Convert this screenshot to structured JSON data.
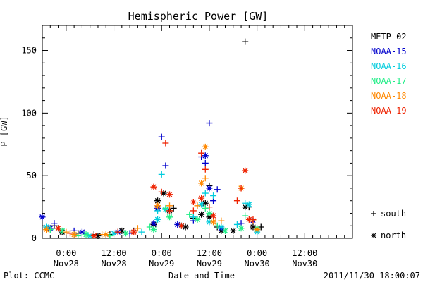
{
  "chart_data": {
    "type": "scatter",
    "title": "Hemispheric Power [GW]",
    "xlabel": "Date and Time",
    "ylabel": "P [GW]",
    "xlim": [
      "2011-11-27 18:00",
      "2011-12-01 00:00"
    ],
    "ylim": [
      0,
      170
    ],
    "x_ticks": [
      {
        "time": "2011-11-28 00:00",
        "line1": "0:00",
        "line2": "Nov28"
      },
      {
        "time": "2011-11-28 12:00",
        "line1": "12:00",
        "line2": "Nov28"
      },
      {
        "time": "2011-11-29 00:00",
        "line1": "0:00",
        "line2": "Nov29"
      },
      {
        "time": "2011-11-29 12:00",
        "line1": "12:00",
        "line2": "Nov29"
      },
      {
        "time": "2011-11-30 00:00",
        "line1": "0:00",
        "line2": "Nov30"
      },
      {
        "time": "2011-11-30 12:00",
        "line1": "12:00",
        "line2": "Nov30"
      }
    ],
    "y_ticks": [
      0,
      50,
      100,
      150
    ],
    "grid": false,
    "legend_position": "right",
    "series": [
      {
        "name": "METP-02",
        "color": "#000000",
        "south": [
          [
            "2011-11-27 21:00",
            10
          ],
          [
            "2011-11-28 03:00",
            4
          ],
          [
            "2011-11-28 07:00",
            3
          ],
          [
            "2011-11-28 11:00",
            3
          ],
          [
            "2011-11-28 17:00",
            6
          ],
          [
            "2011-11-29 03:00",
            24
          ],
          [
            "2011-11-29 08:00",
            16
          ],
          [
            "2011-11-29 12:00",
            42
          ],
          [
            "2011-11-29 14:00",
            9
          ],
          [
            "2011-11-29 21:00",
            157
          ],
          [
            "2011-11-29 22:00",
            25
          ],
          [
            "2011-11-30 01:00",
            9
          ]
        ],
        "north": [
          [
            "2011-11-27 23:00",
            5
          ],
          [
            "2011-11-28 08:00",
            2
          ],
          [
            "2011-11-28 14:00",
            6
          ],
          [
            "2011-11-28 22:00",
            11
          ],
          [
            "2011-11-28 23:00",
            30
          ],
          [
            "2011-11-29 00:30",
            36
          ],
          [
            "2011-11-29 02:00",
            22
          ],
          [
            "2011-11-29 06:00",
            9
          ],
          [
            "2011-11-29 10:00",
            19
          ],
          [
            "2011-11-29 11:00",
            28
          ],
          [
            "2011-11-29 12:00",
            17
          ],
          [
            "2011-11-29 15:00",
            6
          ],
          [
            "2011-11-29 18:00",
            6
          ],
          [
            "2011-11-29 21:00",
            25
          ],
          [
            "2011-11-29 23:00",
            9
          ]
        ]
      },
      {
        "name": "NOAA-15",
        "color": "#0000cc",
        "south": [
          [
            "2011-11-27 21:00",
            12
          ],
          [
            "2011-11-28 02:00",
            6
          ],
          [
            "2011-11-28 16:00",
            4
          ],
          [
            "2011-11-29 00:00",
            81
          ],
          [
            "2011-11-29 01:00",
            58
          ],
          [
            "2011-11-29 08:00",
            14
          ],
          [
            "2011-11-29 10:00",
            65
          ],
          [
            "2011-11-29 11:00",
            60
          ],
          [
            "2011-11-29 12:00",
            92
          ],
          [
            "2011-11-29 13:00",
            30
          ],
          [
            "2011-11-29 14:00",
            39
          ],
          [
            "2011-11-29 20:00",
            12
          ]
        ],
        "north": [
          [
            "2011-11-27 18:00",
            17
          ],
          [
            "2011-11-27 20:00",
            8
          ],
          [
            "2011-11-28 04:00",
            5
          ],
          [
            "2011-11-28 13:00",
            5
          ],
          [
            "2011-11-28 22:00",
            12
          ],
          [
            "2011-11-28 23:00",
            24
          ],
          [
            "2011-11-29 04:00",
            11
          ],
          [
            "2011-11-29 11:00",
            66
          ],
          [
            "2011-11-29 12:00",
            40
          ],
          [
            "2011-11-29 15:00",
            8
          ],
          [
            "2011-11-29 23:00",
            14
          ]
        ]
      },
      {
        "name": "NOAA-16",
        "color": "#00ccdd",
        "south": [
          [
            "2011-11-27 22:00",
            8
          ],
          [
            "2011-11-28 02:00",
            3
          ],
          [
            "2011-11-28 19:00",
            5
          ],
          [
            "2011-11-28 23:00",
            22
          ],
          [
            "2011-11-29 00:00",
            51
          ],
          [
            "2011-11-29 08:00",
            17
          ],
          [
            "2011-11-29 11:00",
            36
          ],
          [
            "2011-11-29 13:00",
            34
          ],
          [
            "2011-11-29 19:00",
            11
          ],
          [
            "2011-11-29 21:00",
            28
          ]
        ],
        "north": [
          [
            "2011-11-27 19:00",
            9
          ],
          [
            "2011-11-28 06:00",
            2
          ],
          [
            "2011-11-28 12:00",
            4
          ],
          [
            "2011-11-28 23:00",
            15
          ],
          [
            "2011-11-29 01:00",
            23
          ],
          [
            "2011-11-29 05:00",
            10
          ],
          [
            "2011-11-29 10:00",
            27
          ],
          [
            "2011-11-29 12:00",
            13
          ],
          [
            "2011-11-29 15:00",
            9
          ],
          [
            "2011-11-29 22:00",
            27
          ],
          [
            "2011-11-30 00:00",
            5
          ]
        ]
      },
      {
        "name": "NOAA-17",
        "color": "#22ee88",
        "south": [
          [
            "2011-11-27 20:00",
            7
          ],
          [
            "2011-11-28 03:00",
            2
          ],
          [
            "2011-11-28 11:00",
            2
          ],
          [
            "2011-11-28 21:00",
            9
          ],
          [
            "2011-11-29 01:00",
            24
          ],
          [
            "2011-11-29 07:00",
            19
          ],
          [
            "2011-11-29 11:00",
            24
          ],
          [
            "2011-11-29 14:00",
            10
          ],
          [
            "2011-11-29 21:00",
            18
          ]
        ],
        "north": [
          [
            "2011-11-27 23:00",
            6
          ],
          [
            "2011-11-28 05:00",
            3
          ],
          [
            "2011-11-28 15:00",
            4
          ],
          [
            "2011-11-28 22:00",
            7
          ],
          [
            "2011-11-29 02:00",
            17
          ],
          [
            "2011-11-29 09:00",
            15
          ],
          [
            "2011-11-29 12:00",
            20
          ],
          [
            "2011-11-29 16:00",
            6
          ],
          [
            "2011-11-29 20:00",
            8
          ],
          [
            "2011-11-30 00:00",
            8
          ]
        ]
      },
      {
        "name": "NOAA-18",
        "color": "#ff8800",
        "south": [
          [
            "2011-11-28 00:00",
            5
          ],
          [
            "2011-11-28 09:00",
            3
          ],
          [
            "2011-11-28 18:00",
            8
          ],
          [
            "2011-11-29 02:00",
            26
          ],
          [
            "2011-11-29 09:00",
            26
          ],
          [
            "2011-11-29 11:00",
            48
          ],
          [
            "2011-11-29 15:00",
            14
          ],
          [
            "2011-11-29 23:00",
            14
          ]
        ],
        "north": [
          [
            "2011-11-27 19:00",
            7
          ],
          [
            "2011-11-28 02:00",
            3
          ],
          [
            "2011-11-28 10:00",
            3
          ],
          [
            "2011-11-28 23:00",
            26
          ],
          [
            "2011-11-29 10:00",
            44
          ],
          [
            "2011-11-29 11:00",
            73
          ],
          [
            "2011-11-29 13:00",
            13
          ],
          [
            "2011-11-29 20:00",
            40
          ],
          [
            "2011-11-30 00:00",
            7
          ]
        ]
      },
      {
        "name": "NOAA-19",
        "color": "#ee2200",
        "south": [
          [
            "2011-11-28 01:00",
            4
          ],
          [
            "2011-11-28 13:00",
            5
          ],
          [
            "2011-11-29 00:00",
            37
          ],
          [
            "2011-11-29 01:00",
            76
          ],
          [
            "2011-11-29 02:00",
            22
          ],
          [
            "2011-11-29 08:00",
            22
          ],
          [
            "2011-11-29 10:00",
            68
          ],
          [
            "2011-11-29 11:00",
            55
          ],
          [
            "2011-11-29 12:00",
            25
          ],
          [
            "2011-11-29 19:00",
            30
          ],
          [
            "2011-11-29 20:00",
            40
          ],
          [
            "2011-11-29 23:00",
            15
          ]
        ],
        "north": [
          [
            "2011-11-27 22:00",
            8
          ],
          [
            "2011-11-28 07:00",
            2
          ],
          [
            "2011-11-28 17:00",
            5
          ],
          [
            "2011-11-28 22:00",
            41
          ],
          [
            "2011-11-29 02:00",
            35
          ],
          [
            "2011-11-29 05:00",
            10
          ],
          [
            "2011-11-29 08:00",
            29
          ],
          [
            "2011-11-29 10:00",
            32
          ],
          [
            "2011-11-29 13:00",
            18
          ],
          [
            "2011-11-29 21:00",
            54
          ],
          [
            "2011-11-29 22:00",
            15
          ]
        ]
      }
    ],
    "marker_legend": [
      {
        "symbol": "+",
        "label": "south"
      },
      {
        "symbol": "*",
        "label": "north"
      }
    ]
  },
  "footer": {
    "left": "Plot: CCMC",
    "right": "2011/11/30 18:00:07"
  }
}
